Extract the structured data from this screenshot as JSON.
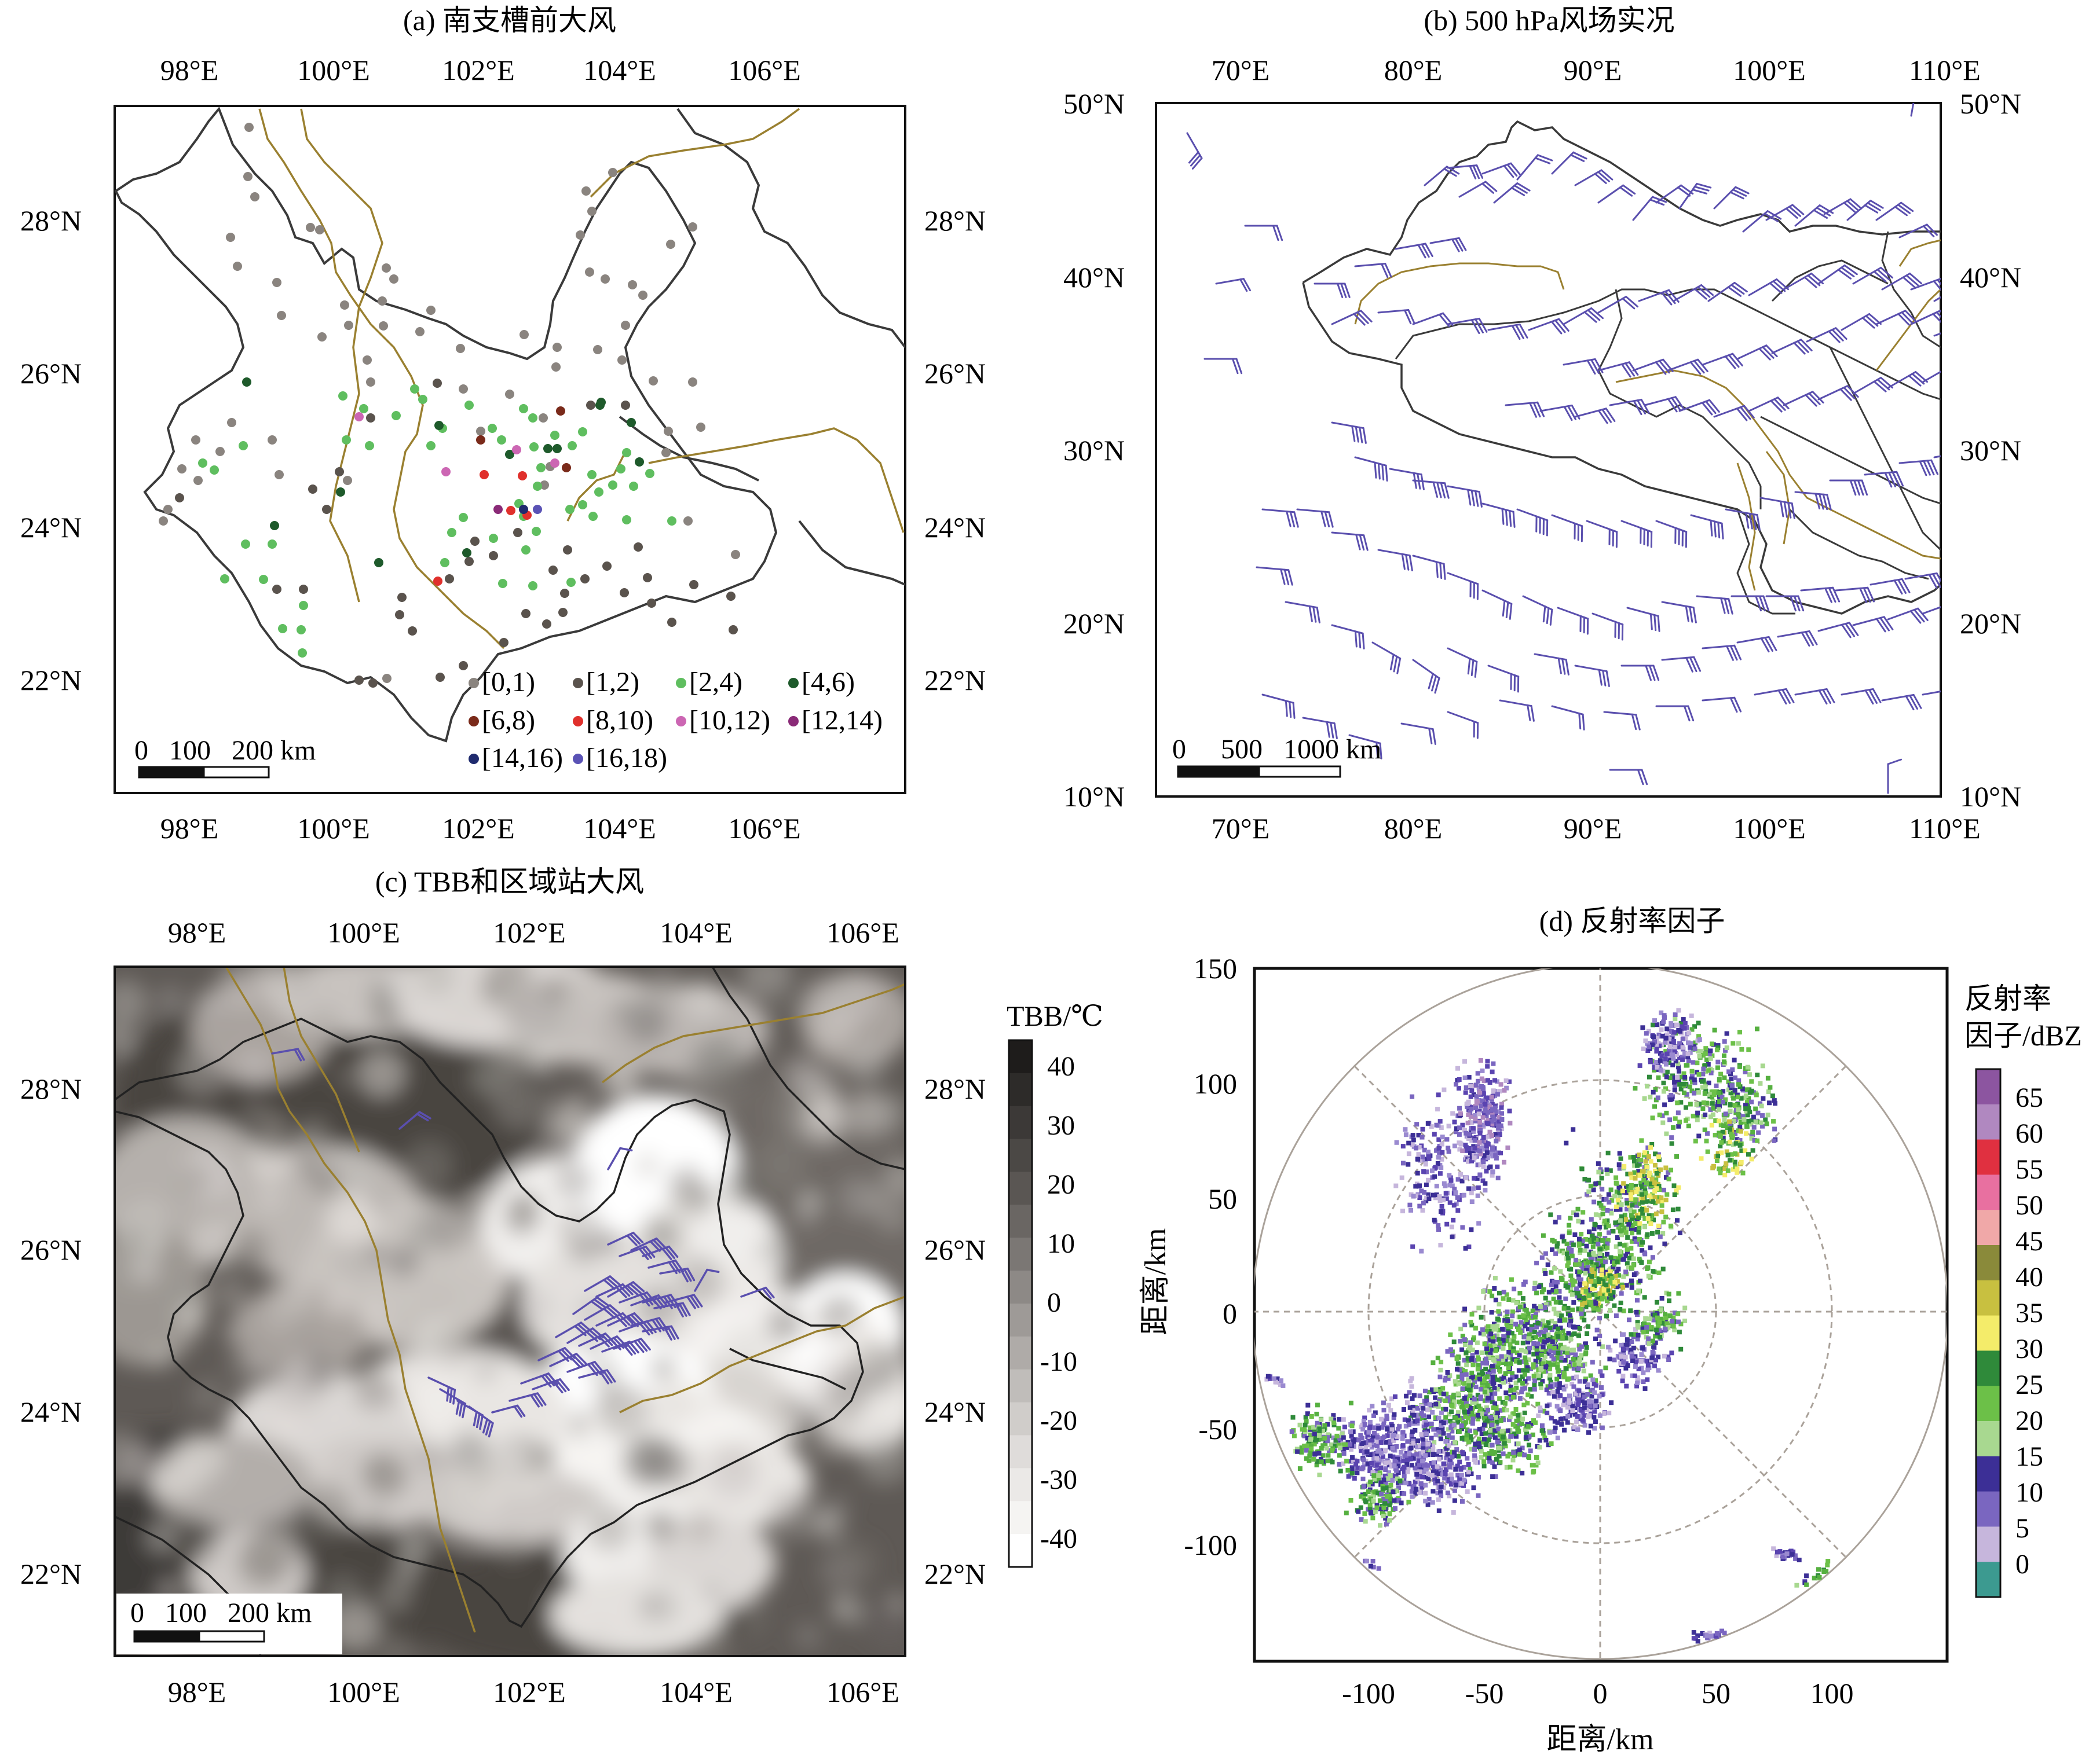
{
  "panel_a": {
    "title": "(a) 南支槽前大风",
    "top_lon_labels": [
      "98°E",
      "100°E",
      "102°E",
      "104°E",
      "106°E"
    ],
    "bottom_lon_labels": [
      "98°E",
      "100°E",
      "102°E",
      "104°E",
      "106°E"
    ],
    "lat_labels": [
      "28°N",
      "26°N",
      "24°N",
      "22°N"
    ],
    "scale_text": "0   100   200 km",
    "legend": [
      {
        "label": "[0,1)",
        "color": "#8a847f"
      },
      {
        "label": "[1,2)",
        "color": "#5a534d"
      },
      {
        "label": "[2,4)",
        "color": "#5fbe5f"
      },
      {
        "label": "[4,6)",
        "color": "#1e5a2b"
      },
      {
        "label": "[6,8)",
        "color": "#7a2a1a"
      },
      {
        "label": "[8,10)",
        "color": "#e0302c"
      },
      {
        "label": "[10,12)",
        "color": "#cc66b3"
      },
      {
        "label": "[12,14)",
        "color": "#8a2a77"
      },
      {
        "label": "[14,16)",
        "color": "#1f2a6e"
      },
      {
        "label": "[16,18)",
        "color": "#5a52b5"
      }
    ]
  },
  "panel_b": {
    "title": "(b) 500 hPa风场实况",
    "top_lon_labels": [
      "70°E",
      "80°E",
      "90°E",
      "100°E",
      "110°E"
    ],
    "bottom_lon_labels": [
      "70°E",
      "80°E",
      "90°E",
      "100°E",
      "110°E"
    ],
    "left_lat_labels": [
      "50°N",
      "40°N",
      "30°N",
      "20°N",
      "10°N"
    ],
    "right_lat_labels": [
      "50°N",
      "40°N",
      "30°N",
      "20°N",
      "10°N"
    ],
    "scale_text": "0     500   1000 km"
  },
  "panel_c": {
    "title": "(c) TBB和区域站大风",
    "top_lon_labels": [
      "98°E",
      "100°E",
      "102°E",
      "104°E",
      "106°E"
    ],
    "bottom_lon_labels": [
      "98°E",
      "100°E",
      "102°E",
      "104°E",
      "106°E"
    ],
    "lat_labels": [
      "28°N",
      "26°N",
      "24°N",
      "22°N"
    ],
    "scale_text": "0   100   200 km",
    "colorbar_title": "TBB/℃",
    "colorbar_ticks": [
      "40",
      "30",
      "20",
      "10",
      "0",
      "-10",
      "-20",
      "-30",
      "-40"
    ]
  },
  "panel_d": {
    "title": "(d) 反射率因子",
    "x_ticks": [
      "-100",
      "-50",
      "0",
      "50",
      "100"
    ],
    "y_ticks": [
      "150",
      "100",
      "50",
      "0",
      "-50",
      "-100"
    ],
    "xlabel": "距离/km",
    "ylabel": "距离/km",
    "colorbar_title_line1": "反射率",
    "colorbar_title_line2": "因子/dBZ",
    "colorbar_ticks": [
      "65",
      "60",
      "55",
      "50",
      "45",
      "40",
      "35",
      "30",
      "25",
      "20",
      "15",
      "10",
      "5",
      "0"
    ]
  },
  "colors": {
    "barb": "#5a4fae",
    "boundary": "#3a3a3a",
    "river": "#9a8030"
  }
}
